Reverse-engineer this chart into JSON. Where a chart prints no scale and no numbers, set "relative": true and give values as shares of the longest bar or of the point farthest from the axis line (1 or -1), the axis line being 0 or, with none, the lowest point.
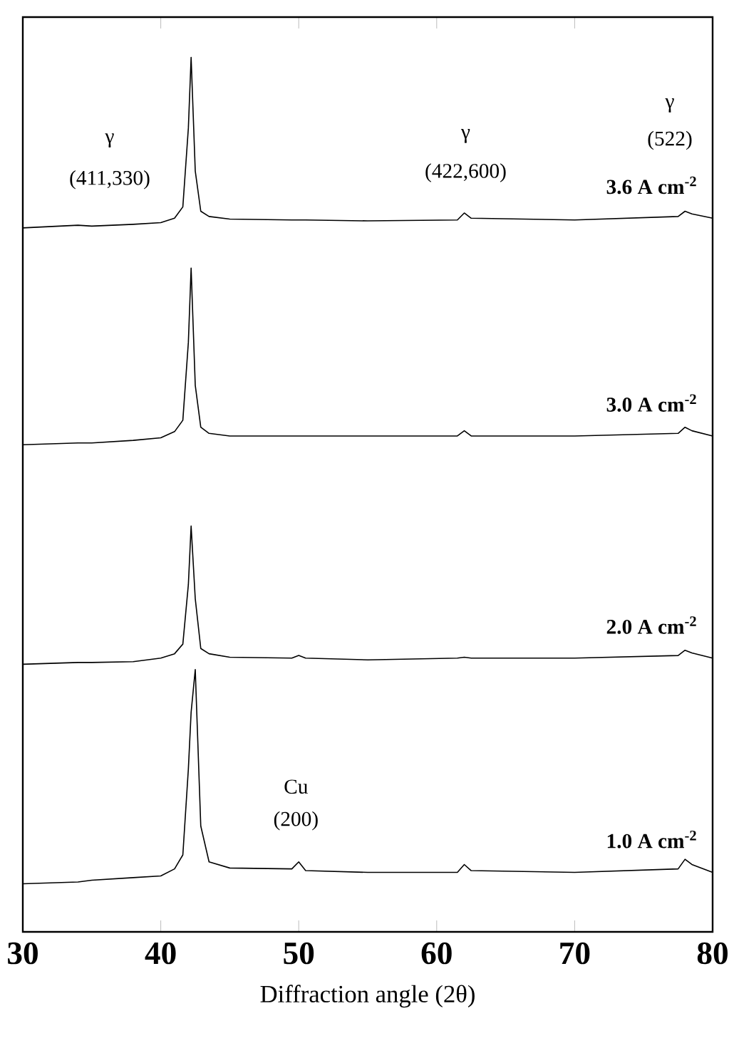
{
  "chart_data": {
    "type": "line",
    "relative": true,
    "xlabel": "Diffraction angle  (2θ)",
    "xlim": [
      30,
      80
    ],
    "xticks": [
      30,
      40,
      50,
      60,
      70,
      80
    ],
    "grid": false,
    "marker": "none",
    "line_style": "solid",
    "x": [
      30,
      34,
      35,
      38,
      40,
      41,
      41.6,
      42.0,
      42.2,
      42.5,
      42.9,
      43.5,
      45,
      49.5,
      50,
      50.5,
      55,
      61.5,
      62,
      62.5,
      70,
      77.5,
      78,
      78.5,
      80
    ],
    "series": [
      {
        "name": "3.6 A cm$^{-2}$",
        "color": "#000000",
        "values": [
          0.805,
          0.808,
          0.807,
          0.809,
          0.811,
          0.816,
          0.829,
          0.919,
          1,
          0.87,
          0.824,
          0.818,
          0.815,
          0.814,
          0.814,
          0.814,
          0.813,
          0.814,
          0.822,
          0.816,
          0.814,
          0.818,
          0.824,
          0.821,
          0.816
        ]
      },
      {
        "name": "3.0 A cm$^{-2}$",
        "color": "#000000",
        "values": [
          0.557,
          0.559,
          0.559,
          0.562,
          0.565,
          0.572,
          0.585,
          0.674,
          0.759,
          0.625,
          0.577,
          0.57,
          0.567,
          0.567,
          0.567,
          0.567,
          0.567,
          0.567,
          0.573,
          0.567,
          0.567,
          0.57,
          0.577,
          0.573,
          0.567
        ]
      },
      {
        "name": "2.0 A cm$^{-2}$",
        "color": "#000000",
        "values": [
          0.306,
          0.308,
          0.308,
          0.309,
          0.313,
          0.318,
          0.329,
          0.397,
          0.464,
          0.381,
          0.324,
          0.318,
          0.314,
          0.313,
          0.316,
          0.313,
          0.311,
          0.313,
          0.314,
          0.313,
          0.313,
          0.316,
          0.322,
          0.319,
          0.313
        ]
      },
      {
        "name": "1.0 A cm$^{-2}$",
        "color": "#000000",
        "values": [
          0.055,
          0.057,
          0.059,
          0.062,
          0.064,
          0.072,
          0.088,
          0.186,
          0.251,
          0.3,
          0.121,
          0.08,
          0.073,
          0.072,
          0.08,
          0.07,
          0.068,
          0.068,
          0.077,
          0.07,
          0.068,
          0.072,
          0.083,
          0.077,
          0.068
        ]
      }
    ],
    "annotations": [
      "γ",
      "(411,330)",
      "γ",
      "(422,600)",
      "γ",
      "(522)",
      "Cu",
      "(200)"
    ]
  }
}
